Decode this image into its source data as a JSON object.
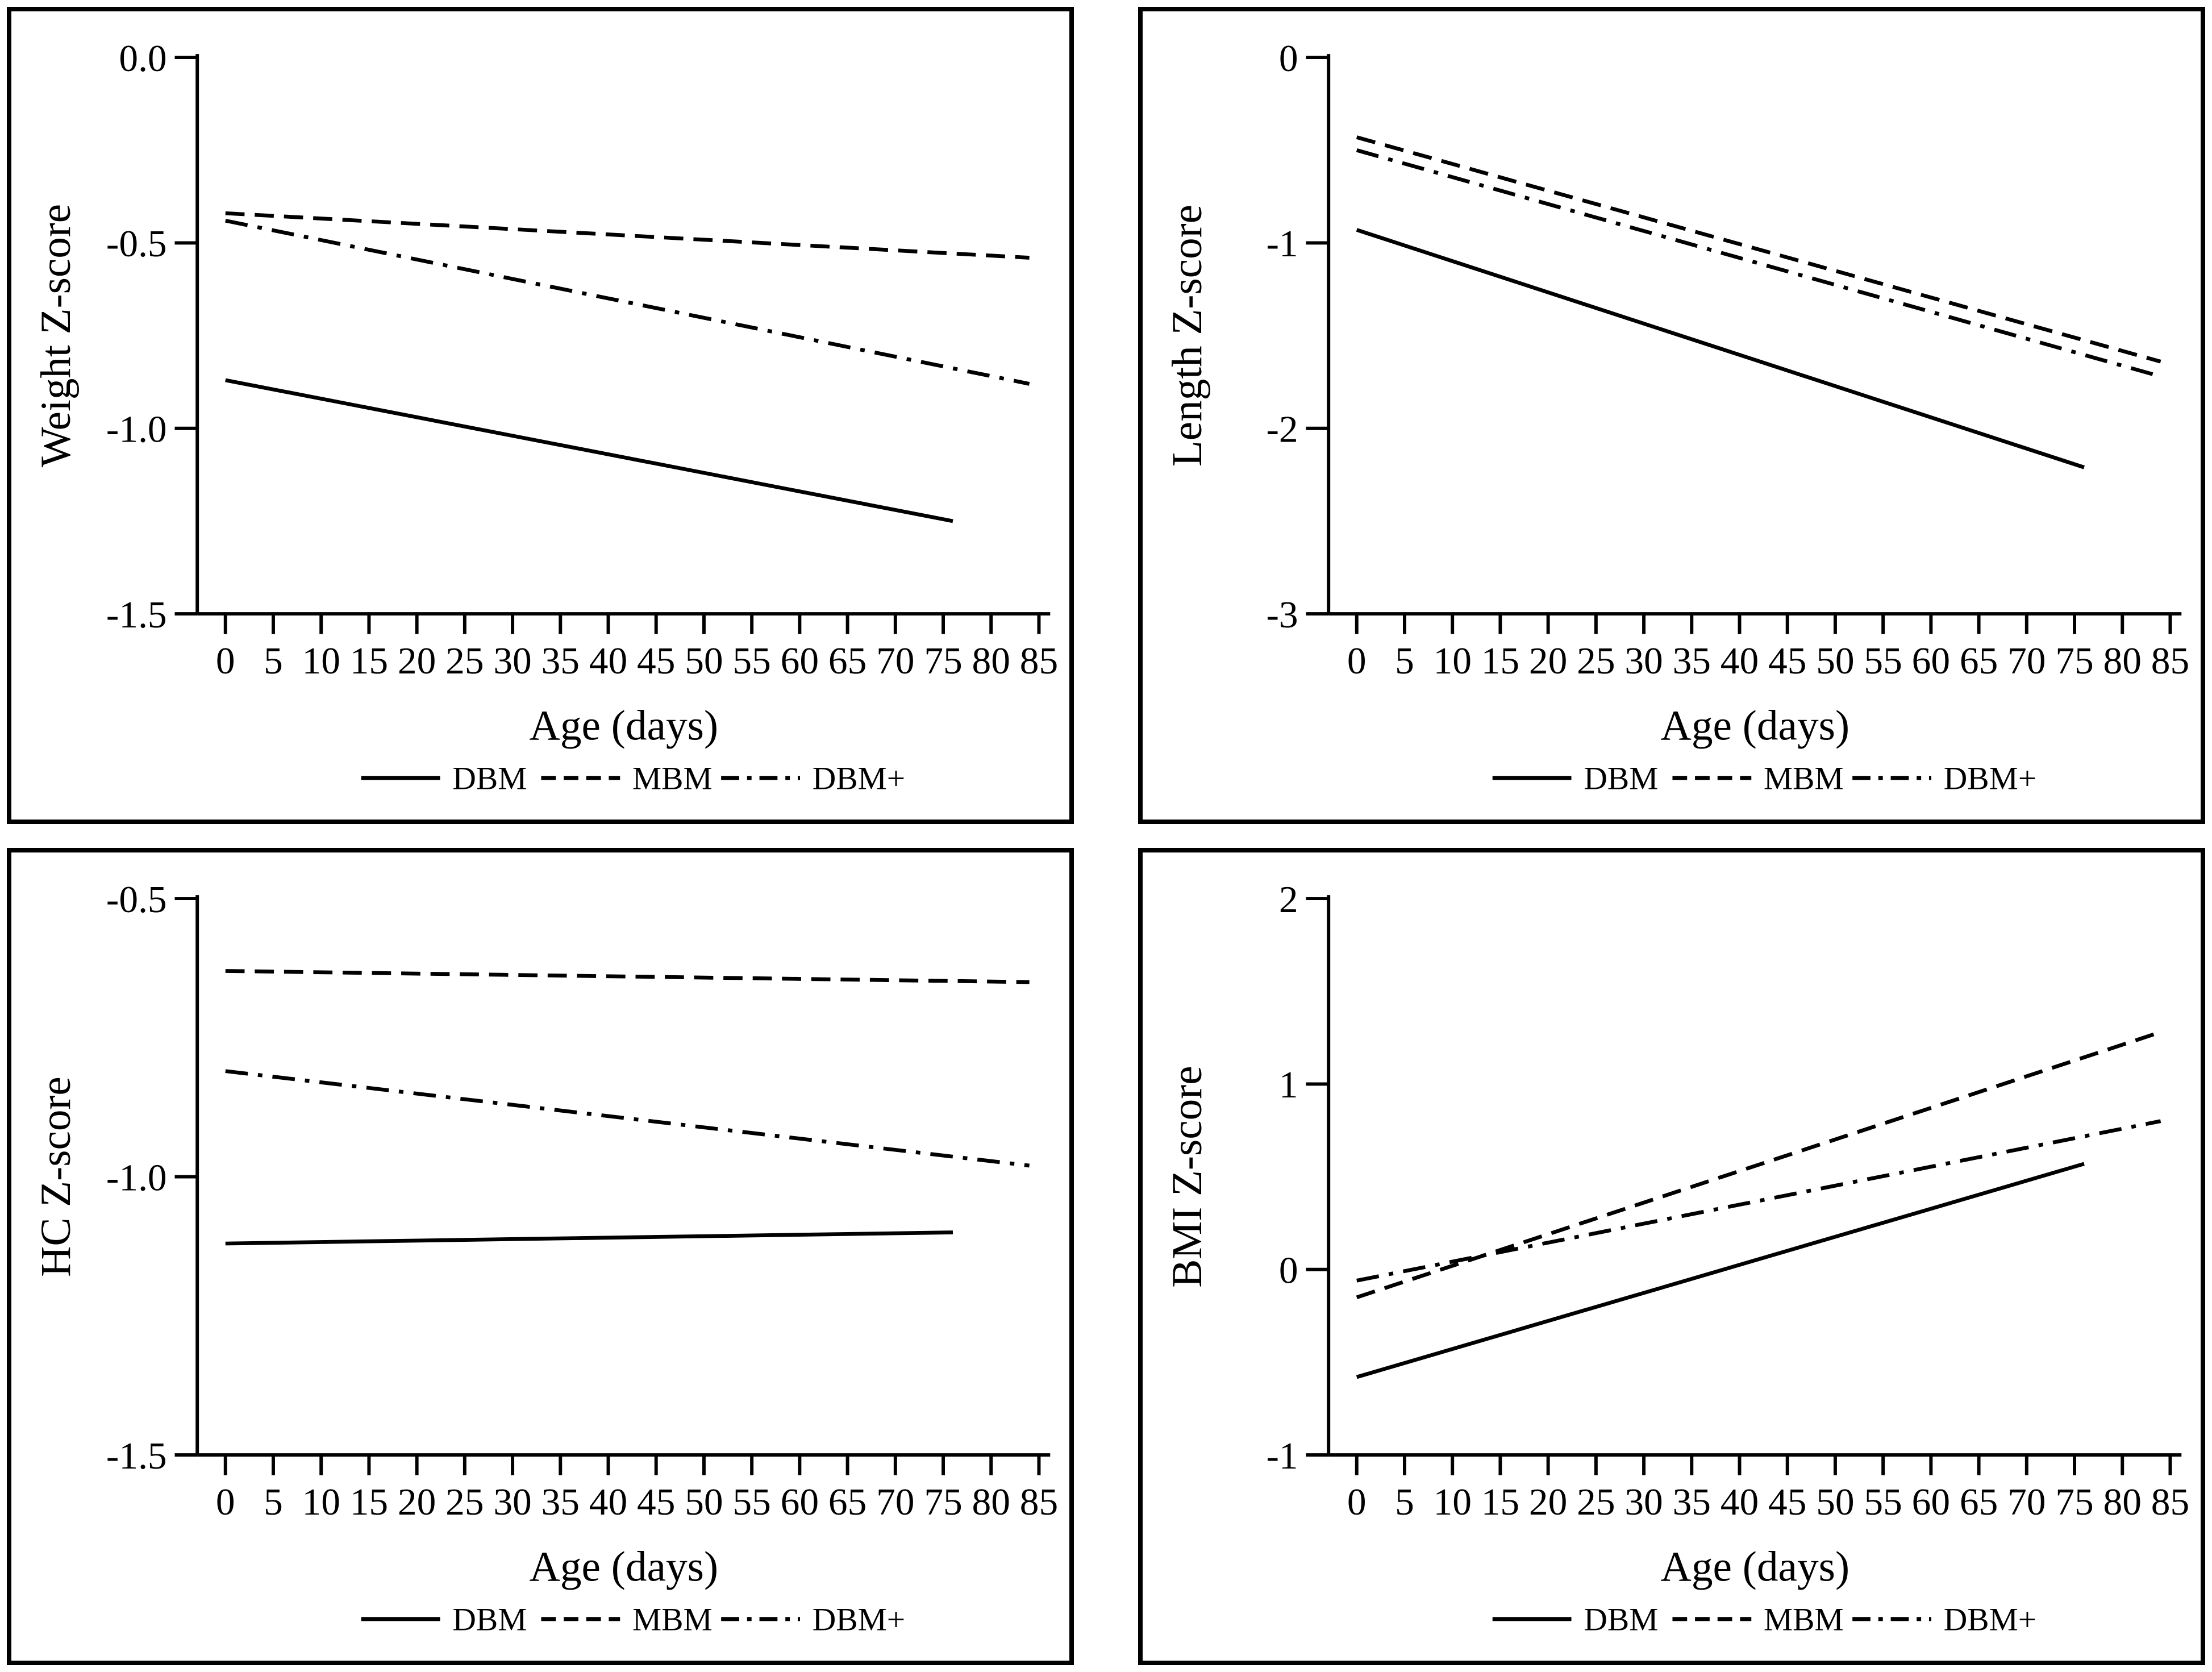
{
  "figure": {
    "background_color": "#ffffff",
    "line_color": "#000000",
    "border_color": "#000000",
    "panels": [
      {
        "name": "weight-zscore"
      },
      {
        "name": "length-zscore"
      },
      {
        "name": "hc-zscore"
      },
      {
        "name": "bmi-zscore"
      }
    ]
  },
  "chart_data": [
    {
      "type": "line",
      "title": "",
      "xlabel": "Age (days)",
      "ylabel": "Weight Z-score",
      "xlim": [
        0,
        85
      ],
      "ylim": [
        -1.5,
        0.0
      ],
      "xticks": [
        0,
        5,
        10,
        15,
        20,
        25,
        30,
        35,
        40,
        45,
        50,
        55,
        60,
        65,
        70,
        75,
        80,
        85
      ],
      "ytick_values": [
        0.0,
        -0.5,
        -1.0,
        -1.5
      ],
      "ytick_labels": [
        "0.0",
        "-0.5",
        "-1.0",
        "-1.5"
      ],
      "grid": false,
      "legend_position": "bottom",
      "series": [
        {
          "name": "DBM",
          "style": "solid",
          "x": [
            0,
            76
          ],
          "y": [
            -0.87,
            -1.25
          ]
        },
        {
          "name": "MBM",
          "style": "dashed",
          "x": [
            0,
            84
          ],
          "y": [
            -0.42,
            -0.54
          ]
        },
        {
          "name": "DBM+",
          "style": "dashdot",
          "x": [
            0,
            84
          ],
          "y": [
            -0.44,
            -0.88
          ]
        }
      ]
    },
    {
      "type": "line",
      "title": "",
      "xlabel": "Age (days)",
      "ylabel": "Length Z-score",
      "xlim": [
        0,
        85
      ],
      "ylim": [
        -3,
        0
      ],
      "xticks": [
        0,
        5,
        10,
        15,
        20,
        25,
        30,
        35,
        40,
        45,
        50,
        55,
        60,
        65,
        70,
        75,
        80,
        85
      ],
      "ytick_values": [
        0,
        -1,
        -2,
        -3
      ],
      "ytick_labels": [
        "0",
        "-1",
        "-2",
        "-3"
      ],
      "grid": false,
      "legend_position": "bottom",
      "series": [
        {
          "name": "DBM",
          "style": "solid",
          "x": [
            0,
            76
          ],
          "y": [
            -0.93,
            -2.21
          ]
        },
        {
          "name": "MBM",
          "style": "dashed",
          "x": [
            0,
            84
          ],
          "y": [
            -0.43,
            -1.64
          ]
        },
        {
          "name": "DBM+",
          "style": "dashdot",
          "x": [
            0,
            84
          ],
          "y": [
            -0.5,
            -1.72
          ]
        }
      ]
    },
    {
      "type": "line",
      "title": "",
      "xlabel": "Age (days)",
      "ylabel": "HC Z-score",
      "xlim": [
        0,
        85
      ],
      "ylim": [
        -1.5,
        -0.5
      ],
      "xticks": [
        0,
        5,
        10,
        15,
        20,
        25,
        30,
        35,
        40,
        45,
        50,
        55,
        60,
        65,
        70,
        75,
        80,
        85
      ],
      "ytick_values": [
        -0.5,
        -1.0,
        -1.5
      ],
      "ytick_labels": [
        "-0.5",
        "-1.0",
        "-1.5"
      ],
      "grid": false,
      "legend_position": "bottom",
      "series": [
        {
          "name": "DBM",
          "style": "solid",
          "x": [
            0,
            76
          ],
          "y": [
            -1.12,
            -1.1
          ]
        },
        {
          "name": "MBM",
          "style": "dashed",
          "x": [
            0,
            84
          ],
          "y": [
            -0.63,
            -0.65
          ]
        },
        {
          "name": "DBM+",
          "style": "dashdot",
          "x": [
            0,
            84
          ],
          "y": [
            -0.81,
            -0.98
          ]
        }
      ]
    },
    {
      "type": "line",
      "title": "",
      "xlabel": "Age (days)",
      "ylabel": "BMI Z-score",
      "xlim": [
        0,
        85
      ],
      "ylim": [
        -1,
        2
      ],
      "xticks": [
        0,
        5,
        10,
        15,
        20,
        25,
        30,
        35,
        40,
        45,
        50,
        55,
        60,
        65,
        70,
        75,
        80,
        85
      ],
      "ytick_values": [
        2,
        1,
        0,
        -1
      ],
      "ytick_labels": [
        "2",
        "1",
        "0",
        "-1"
      ],
      "grid": false,
      "legend_position": "bottom",
      "series": [
        {
          "name": "DBM",
          "style": "solid",
          "x": [
            0,
            76
          ],
          "y": [
            -0.58,
            0.57
          ]
        },
        {
          "name": "MBM",
          "style": "dashed",
          "x": [
            0,
            84
          ],
          "y": [
            -0.15,
            1.28
          ]
        },
        {
          "name": "DBM+",
          "style": "dashdot",
          "x": [
            0,
            84
          ],
          "y": [
            -0.06,
            0.8
          ]
        }
      ]
    }
  ]
}
